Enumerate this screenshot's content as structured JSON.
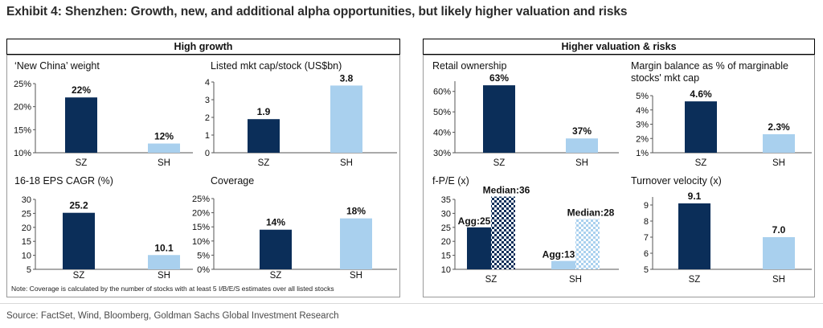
{
  "page_title": "Exhibit 4: Shenzhen: Growth, new, and additional alpha opportunities, but likely higher valuation and risks",
  "headers": {
    "left": "High growth",
    "right": "Higher valuation & risks"
  },
  "note": "Note: Coverage is calculated by the number of stocks with at least 5 I/B/E/S estimates over all listed stocks",
  "source": "Source: FactSet, Wind, Bloomberg, Goldman Sachs Global Investment Research",
  "colors": {
    "dark": "#0b2e59",
    "light": "#a9d0ee"
  },
  "chart_data": [
    {
      "id": "new-china-weight",
      "type": "bar",
      "title": "‘New China’ weight",
      "categories": [
        "SZ",
        "SH"
      ],
      "values": [
        22,
        12
      ],
      "labels": [
        "22%",
        "12%"
      ],
      "ylim": [
        10,
        25
      ],
      "ticks": [
        10,
        15,
        20,
        25
      ],
      "tick_labels": [
        "10%",
        "15%",
        "20%",
        "25%"
      ]
    },
    {
      "id": "listed-mkt-cap",
      "type": "bar",
      "title": "Listed mkt cap/stock (US$bn)",
      "categories": [
        "SZ",
        "SH"
      ],
      "values": [
        1.9,
        3.8
      ],
      "labels": [
        "1.9",
        "3.8"
      ],
      "ylim": [
        0,
        4
      ],
      "ticks": [
        0,
        1,
        2,
        3,
        4
      ],
      "tick_labels": [
        "0",
        "1",
        "2",
        "3",
        "4"
      ]
    },
    {
      "id": "eps-cagr",
      "type": "bar",
      "title": "16-18 EPS CAGR (%)",
      "categories": [
        "SZ",
        "SH"
      ],
      "values": [
        25.2,
        10.1
      ],
      "labels": [
        "25.2",
        "10.1"
      ],
      "ylim": [
        5,
        30
      ],
      "ticks": [
        5,
        10,
        15,
        20,
        25,
        30
      ],
      "tick_labels": [
        "5",
        "10",
        "15",
        "20",
        "25",
        "30"
      ]
    },
    {
      "id": "coverage",
      "type": "bar",
      "title": "Coverage",
      "categories": [
        "SZ",
        "SH"
      ],
      "values": [
        14,
        18
      ],
      "labels": [
        "14%",
        "18%"
      ],
      "ylim": [
        0,
        25
      ],
      "ticks": [
        0,
        5,
        10,
        15,
        20,
        25
      ],
      "tick_labels": [
        "0%",
        "5%",
        "10%",
        "15%",
        "20%",
        "25%"
      ]
    },
    {
      "id": "retail-ownership",
      "type": "bar",
      "title": "Retail ownership",
      "categories": [
        "SZ",
        "SH"
      ],
      "values": [
        63,
        37
      ],
      "labels": [
        "63%",
        "37%"
      ],
      "ylim": [
        30,
        65
      ],
      "ticks": [
        30,
        40,
        50,
        60
      ],
      "tick_labels": [
        "30%",
        "40%",
        "50%",
        "60%"
      ]
    },
    {
      "id": "margin-balance",
      "type": "bar",
      "title": "Margin balance as % of marginable stocks' mkt cap",
      "categories": [
        "SZ",
        "SH"
      ],
      "values": [
        4.6,
        2.3
      ],
      "labels": [
        "4.6%",
        "2.3%"
      ],
      "ylim": [
        1,
        5
      ],
      "ticks": [
        1,
        2,
        3,
        4,
        5
      ],
      "tick_labels": [
        "1%",
        "2%",
        "3%",
        "4%",
        "5%"
      ]
    },
    {
      "id": "forward-pe",
      "type": "bar",
      "title": "f-P/E (x)",
      "categories": [
        "SZ",
        "SH"
      ],
      "series": [
        {
          "name": "Agg",
          "values": [
            25,
            13
          ],
          "labels": [
            "Agg:25",
            "Agg:13"
          ]
        },
        {
          "name": "Median",
          "values": [
            36,
            28
          ],
          "labels": [
            "Median:36",
            "Median:28"
          ]
        }
      ],
      "ylim": [
        10,
        35
      ],
      "ticks": [
        10,
        15,
        20,
        25,
        30,
        35
      ],
      "tick_labels": [
        "10",
        "15",
        "20",
        "25",
        "30",
        "35"
      ]
    },
    {
      "id": "turnover-velocity",
      "type": "bar",
      "title": "Turnover velocity (x)",
      "categories": [
        "SZ",
        "SH"
      ],
      "values": [
        9.1,
        7.0
      ],
      "labels": [
        "9.1",
        "7.0"
      ],
      "ylim": [
        5,
        9.5
      ],
      "ticks": [
        5,
        6,
        7,
        8,
        9
      ],
      "tick_labels": [
        "5",
        "6",
        "7",
        "8",
        "9"
      ]
    }
  ]
}
